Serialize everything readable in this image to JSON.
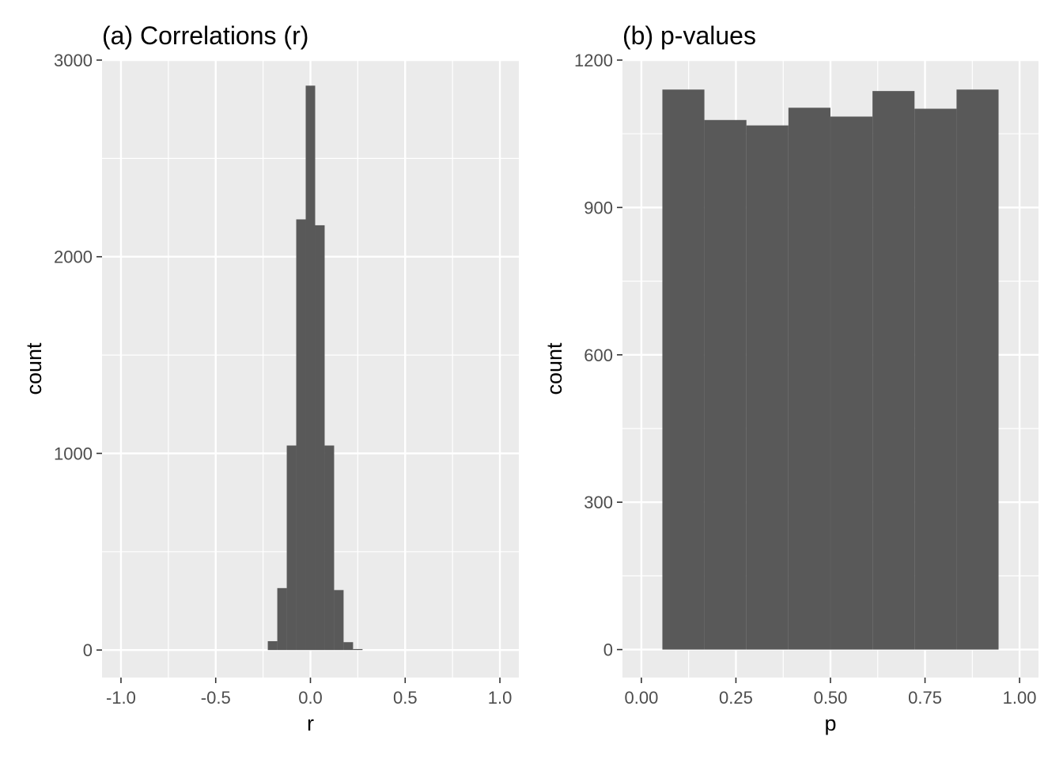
{
  "chart_data": [
    {
      "type": "bar",
      "title": "(a) Correlations (r)",
      "xlabel": "r",
      "ylabel": "count",
      "xlim": [
        -1.1,
        1.1
      ],
      "ylim": [
        -140,
        3000
      ],
      "x_ticks": [
        -1.0,
        -0.5,
        0.0,
        0.5,
        1.0
      ],
      "x_tick_labels": [
        "-1.0",
        "-0.5",
        "0.0",
        "0.5",
        "1.0"
      ],
      "y_ticks": [
        0,
        1000,
        2000,
        3000
      ],
      "y_tick_labels": [
        "0",
        "1000",
        "2000",
        "3000"
      ],
      "bin_width": 0.05,
      "bins": [
        {
          "x": -0.2,
          "count": 45
        },
        {
          "x": -0.15,
          "count": 315
        },
        {
          "x": -0.1,
          "count": 1040
        },
        {
          "x": -0.05,
          "count": 2190
        },
        {
          "x": 0.0,
          "count": 2870
        },
        {
          "x": 0.05,
          "count": 2160
        },
        {
          "x": 0.1,
          "count": 1040
        },
        {
          "x": 0.15,
          "count": 305
        },
        {
          "x": 0.2,
          "count": 40
        },
        {
          "x": 0.25,
          "count": 5
        }
      ],
      "grid": true,
      "bar_color": "#595959",
      "panel_color": "#ebebeb",
      "grid_color": "#ffffff"
    },
    {
      "type": "bar",
      "title": "(b) p-values",
      "xlabel": "p",
      "ylabel": "count",
      "xlim": [
        -0.05,
        1.05
      ],
      "ylim": [
        -57,
        1200
      ],
      "x_ticks": [
        0.0,
        0.25,
        0.5,
        0.75,
        1.0
      ],
      "x_tick_labels": [
        "0.00",
        "0.25",
        "0.50",
        "0.75",
        "1.00"
      ],
      "y_ticks": [
        0,
        300,
        600,
        900,
        1200
      ],
      "y_tick_labels": [
        "0",
        "300",
        "600",
        "900",
        "1200"
      ],
      "bin_width": 0.1111,
      "bins": [
        {
          "x": 0.1111,
          "count": 1140
        },
        {
          "x": 0.2222,
          "count": 1078
        },
        {
          "x": 0.3333,
          "count": 1067
        },
        {
          "x": 0.4444,
          "count": 1103
        },
        {
          "x": 0.5556,
          "count": 1085
        },
        {
          "x": 0.6667,
          "count": 1137
        },
        {
          "x": 0.7778,
          "count": 1101
        },
        {
          "x": 0.8889,
          "count": 1140
        }
      ],
      "grid": true,
      "bar_color": "#595959",
      "panel_color": "#ebebeb",
      "grid_color": "#ffffff"
    }
  ]
}
